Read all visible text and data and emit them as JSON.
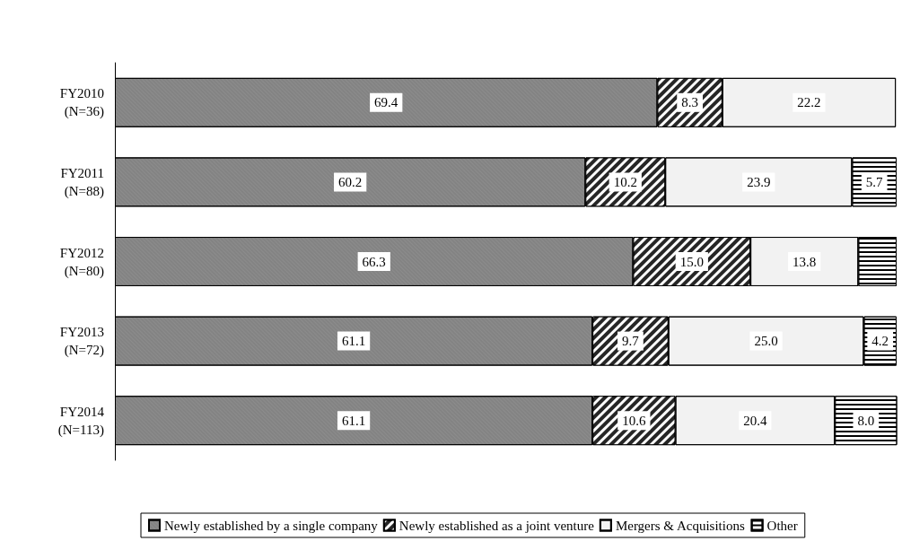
{
  "chart_data": {
    "type": "bar",
    "orientation": "horizontal",
    "stacked": true,
    "categories": [
      "FY2010\n(N=36)",
      "FY2011\n(N=88)",
      "FY2012\n(N=80)",
      "FY2013\n(N=72)",
      "FY2014\n(N=113)"
    ],
    "series": [
      {
        "name": "Newly established by a single company",
        "color": "#8c8c8c",
        "values": [
          69.4,
          60.2,
          66.3,
          61.1,
          61.1
        ],
        "value_labels": [
          "69.4",
          "60.2",
          "66.3",
          "61.1",
          "61.1"
        ]
      },
      {
        "name": "Newly established as a joint venture",
        "color": "#262626",
        "values": [
          8.3,
          10.2,
          15.0,
          9.7,
          10.6
        ],
        "value_labels": [
          "8.3",
          "10.2",
          "15.0",
          "9.7",
          "10.6"
        ]
      },
      {
        "name": "Mergers & Acquisitions",
        "color": "#f2f2f2",
        "values": [
          22.2,
          23.9,
          13.8,
          25.0,
          20.4
        ],
        "value_labels": [
          "22.2",
          "23.9",
          "13.8",
          "25.0",
          "20.4"
        ]
      },
      {
        "name": "Other",
        "color": "#ffffff",
        "values": [
          null,
          5.7,
          4.9,
          4.2,
          8.0
        ],
        "value_labels": [
          null,
          "5.7",
          null,
          "4.2",
          "8.0"
        ]
      }
    ],
    "xlim": [
      0,
      100
    ],
    "tick_labels": "y",
    "grid": false,
    "legend": "bottom"
  }
}
